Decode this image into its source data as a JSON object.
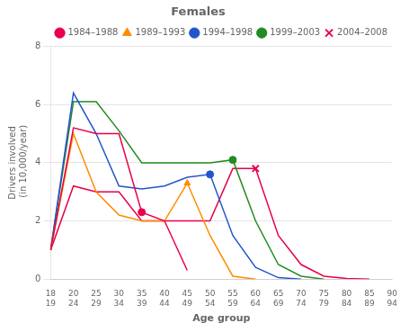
{
  "chart_data": {
    "type": "line",
    "title": "Females",
    "x_label": "Age group",
    "y_label": "Drivers involved\n (in 10,000/year)",
    "categories": [
      "18\n19",
      "20\n24",
      "25\n29",
      "30\n34",
      "35\n39",
      "40\n44",
      "45\n49",
      "50\n54",
      "55\n59",
      "60\n64",
      "65\n69",
      "70\n74",
      "75\n79",
      "80\n84",
      "85\n89",
      "90\n94"
    ],
    "series": [
      {
        "name": "1984–1988",
        "color": "#E8004A",
        "marker": "circle",
        "marker_index": 4,
        "values": [
          1.0,
          5.2,
          5.0,
          5.0,
          2.3,
          2.0,
          0.3,
          null,
          null,
          null,
          null,
          null,
          null,
          null,
          null,
          null
        ]
      },
      {
        "name": "1989–1993",
        "color": "#FF8C00",
        "marker": "triangle",
        "marker_index": 6,
        "values": [
          1.0,
          5.0,
          3.0,
          2.2,
          2.0,
          2.0,
          3.3,
          1.5,
          0.1,
          0.0,
          null,
          null,
          null,
          null,
          null,
          null
        ]
      },
      {
        "name": "1994–1998",
        "color": "#2255CC",
        "marker": "circle",
        "marker_index": 7,
        "values": [
          1.0,
          6.4,
          5.0,
          3.2,
          3.1,
          3.2,
          3.5,
          3.6,
          1.5,
          0.4,
          0.05,
          0.0,
          null,
          null,
          null,
          null
        ]
      },
      {
        "name": "1999–2003",
        "color": "#228B22",
        "marker": "circle",
        "marker_index": 8,
        "values": [
          1.0,
          6.1,
          6.1,
          5.1,
          4.0,
          4.0,
          4.0,
          4.0,
          4.1,
          2.0,
          0.5,
          0.1,
          0.0,
          null,
          null,
          null
        ]
      },
      {
        "name": "2004–2008",
        "color": "#E8004A",
        "marker": "x",
        "marker_index": 9,
        "values": [
          1.0,
          3.2,
          3.0,
          3.0,
          2.0,
          2.0,
          2.0,
          2.0,
          3.8,
          3.8,
          1.5,
          0.5,
          0.1,
          0.02,
          0.0,
          null
        ]
      }
    ],
    "ylim": [
      0,
      8
    ],
    "yticks": [
      0,
      2,
      4,
      6,
      8
    ],
    "grid": "y",
    "legend": "upper right"
  }
}
